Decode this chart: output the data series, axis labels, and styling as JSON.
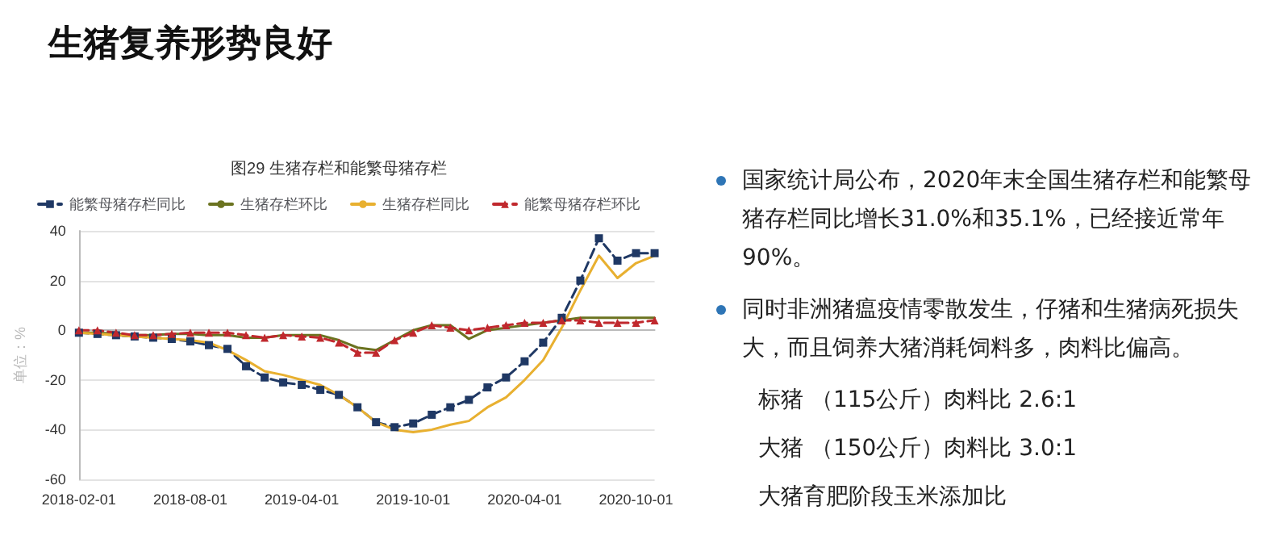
{
  "chart_data": [
    {
      "type": "line",
      "title": "图29 生猪存栏和能繁母猪存栏",
      "ylabel": "单位：%",
      "categories": [
        "2018-02-01",
        null,
        null,
        null,
        null,
        null,
        "2018-08-01",
        null,
        null,
        null,
        null,
        null,
        "2019-04-01",
        null,
        null,
        null,
        null,
        null,
        "2019-10-01",
        null,
        null,
        null,
        null,
        null,
        "2020-04-01",
        null,
        null,
        null,
        null,
        null,
        "2020-10-01",
        null
      ],
      "series": [
        {
          "name": "能繁母猪存栏同比",
          "color": "#1f3864",
          "marker": "square",
          "line_style": "dashed",
          "values": [
            -1,
            -1.5,
            -2,
            -2.5,
            -3,
            -3.5,
            -4.5,
            -6,
            -7.5,
            -14.5,
            -19,
            -21,
            -22,
            -24,
            -26,
            -31,
            -37,
            -39,
            -37.5,
            -34,
            -31,
            -28,
            -23,
            -19,
            -12.5,
            -5,
            5,
            20,
            37,
            28,
            31,
            31
          ]
        },
        {
          "name": "生猪存栏环比",
          "color": "#6b7320",
          "marker": "none",
          "line_style": "solid",
          "values": [
            -1,
            -1,
            -1.5,
            -2,
            -2,
            -1.5,
            -1.5,
            -2,
            -2,
            -3,
            -3,
            -2,
            -2,
            -2,
            -4,
            -7,
            -8,
            -4,
            0,
            2,
            2,
            -3.5,
            0,
            1,
            2,
            3,
            4,
            5,
            5,
            5,
            5,
            5
          ]
        },
        {
          "name": "生猪存栏同比",
          "color": "#e8b030",
          "marker": "none",
          "line_style": "solid",
          "values": [
            -1,
            -1.5,
            -2,
            -2.5,
            -3,
            -3.5,
            -4,
            -5,
            -8,
            -12,
            -16.5,
            -18,
            -20,
            -22,
            -26,
            -31,
            -37,
            -40,
            -41,
            -40,
            -38,
            -36.5,
            -31,
            -27,
            -20,
            -12,
            1,
            16,
            30,
            21,
            27,
            30
          ]
        },
        {
          "name": "能繁母猪存栏环比",
          "color": "#c0282d",
          "marker": "triangle",
          "line_style": "dashed",
          "values": [
            0,
            0,
            -1,
            -2,
            -2,
            -1.5,
            -1,
            -1,
            -1,
            -2,
            -3,
            -2,
            -2.5,
            -3,
            -5,
            -9,
            -9,
            -4,
            -1,
            2,
            1,
            0,
            1,
            2,
            3,
            3,
            4,
            4,
            3,
            3,
            3,
            4
          ]
        }
      ],
      "ylim": [
        -60,
        40
      ],
      "yticks": [
        -60,
        -40,
        -20,
        0,
        20,
        40
      ],
      "grid": "y",
      "legend": "top"
    },
    {
      "type": "other",
      "title": "生猪复养形势良好",
      "annotations": [
        "国家统计局公布，2020年末全国生猪存栏和能繁母猪存栏同比增长31.0%和35.1%，已经接近常年90%。",
        "同时非洲猪瘟疫情零散发生，仔猪和生猪病死损失大，而且饲养大猪消耗饲料多，肉料比偏高。",
        "标猪 （115公斤）肉料比 2.6:1",
        "大猪 （150公斤）肉料比 3.0:1",
        "大猪育肥阶段玉米添加比"
      ]
    }
  ]
}
